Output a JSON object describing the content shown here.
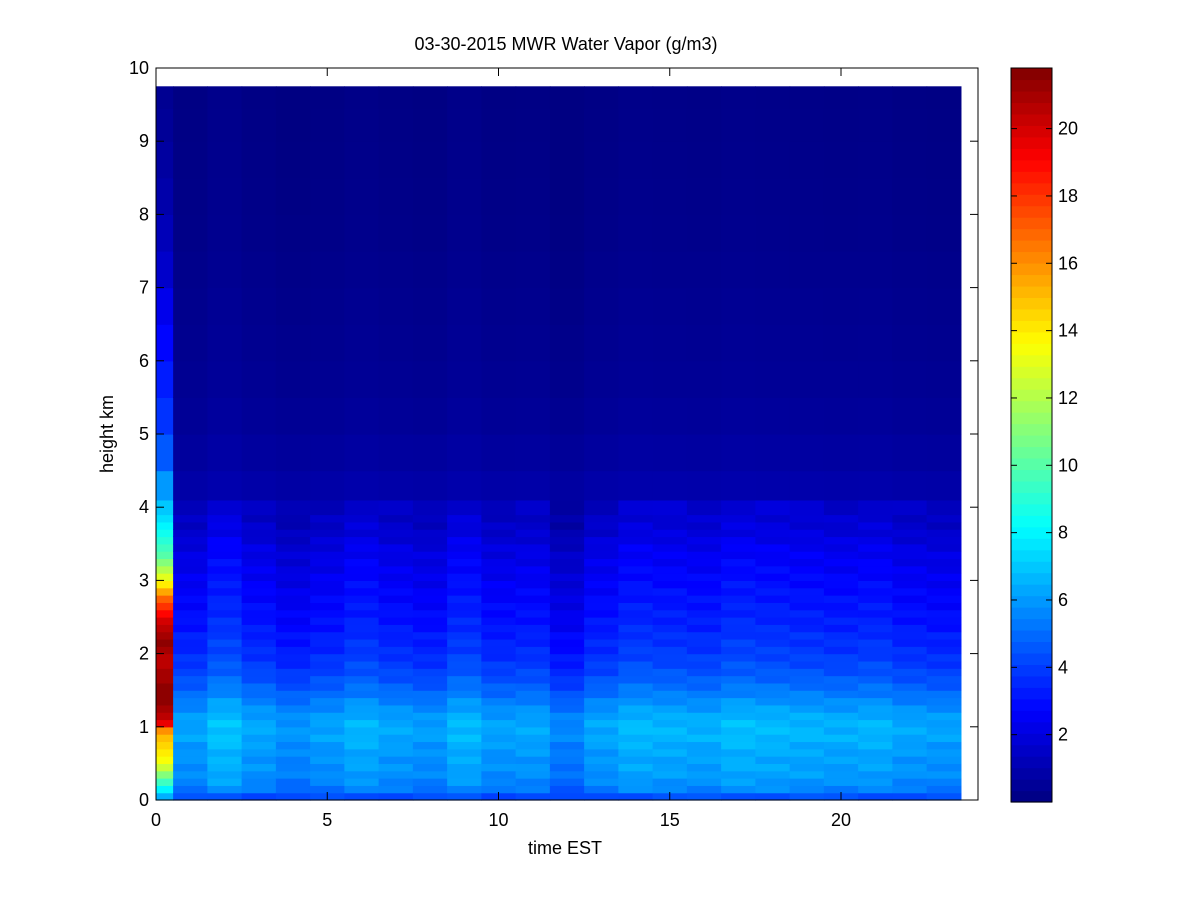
{
  "chart_data": {
    "type": "heatmap",
    "title": "03-30-2015 MWR Water Vapor (g/m3)",
    "xlabel": "time EST",
    "ylabel": "height km",
    "xlim": [
      0,
      24
    ],
    "ylim": [
      0,
      10
    ],
    "x_ticks": [
      0,
      5,
      10,
      15,
      20
    ],
    "y_ticks": [
      0,
      1,
      2,
      3,
      4,
      5,
      6,
      7,
      8,
      9,
      10
    ],
    "colorbar": {
      "colormap": "jet",
      "range": [
        0,
        21.8
      ],
      "ticks": [
        2,
        4,
        6,
        8,
        10,
        12,
        14,
        16,
        18,
        20
      ]
    },
    "time_hours": [
      0.25,
      1.0,
      2.0,
      3.0,
      4.0,
      5.0,
      6.0,
      7.0,
      8.0,
      9.0,
      10.0,
      11.0,
      12.0,
      13.0,
      14.0,
      15.0,
      16.0,
      17.0,
      18.0,
      19.0,
      20.0,
      21.0,
      22.0,
      23.0
    ],
    "height_km": [
      0.05,
      0.15,
      0.25,
      0.35,
      0.45,
      0.55,
      0.65,
      0.75,
      0.85,
      0.95,
      1.05,
      1.15,
      1.25,
      1.35,
      1.45,
      1.55,
      1.65,
      1.75,
      1.85,
      1.95,
      2.05,
      2.15,
      2.25,
      2.35,
      2.45,
      2.55,
      2.65,
      2.75,
      2.85,
      2.95,
      3.05,
      3.15,
      3.25,
      3.35,
      3.45,
      3.55,
      3.65,
      3.75,
      3.85,
      3.95,
      4.25,
      4.75,
      5.25,
      5.75,
      6.25,
      6.75,
      7.25,
      7.75,
      8.25,
      8.75,
      9.25,
      9.65
    ],
    "first_column_profile": [
      6.5,
      8.0,
      9.5,
      11.0,
      12.5,
      13.5,
      14.0,
      14.5,
      15.0,
      16.0,
      19.5,
      20.5,
      21.0,
      21.5,
      21.5,
      21.5,
      21.0,
      21.0,
      20.5,
      20.5,
      21.0,
      21.5,
      21.0,
      20.5,
      20.0,
      19.0,
      18.0,
      17.0,
      15.5,
      14.0,
      13.0,
      12.0,
      11.0,
      10.0,
      9.5,
      9.0,
      8.5,
      8.0,
      7.5,
      7.0,
      6.0,
      4.6,
      3.8,
      3.3,
      2.8,
      2.3,
      1.6,
      1.2,
      0.9,
      0.7,
      0.5,
      0.4
    ],
    "typical_profile": [
      4.2,
      5.0,
      5.3,
      5.5,
      5.6,
      5.6,
      5.7,
      5.8,
      6.0,
      6.0,
      6.0,
      5.8,
      5.5,
      5.2,
      4.8,
      4.5,
      4.2,
      3.9,
      3.7,
      3.5,
      3.3,
      3.2,
      3.1,
      2.9,
      2.8,
      2.7,
      2.6,
      2.5,
      2.4,
      2.3,
      2.2,
      2.1,
      2.0,
      1.9,
      1.8,
      1.6,
      1.4,
      1.3,
      1.2,
      1.1,
      0.8,
      0.6,
      0.45,
      0.35,
      0.3,
      0.25,
      0.2,
      0.15,
      0.12,
      0.1,
      0.08,
      0.06
    ],
    "column_offsets": [
      0,
      0.2,
      0.9,
      0.3,
      -0.1,
      0.2,
      0.6,
      0.3,
      0.1,
      0.7,
      0.2,
      0.3,
      -0.4,
      0.3,
      0.7,
      0.6,
      0.5,
      0.8,
      0.7,
      0.6,
      0.5,
      0.6,
      0.3,
      0.2
    ]
  }
}
